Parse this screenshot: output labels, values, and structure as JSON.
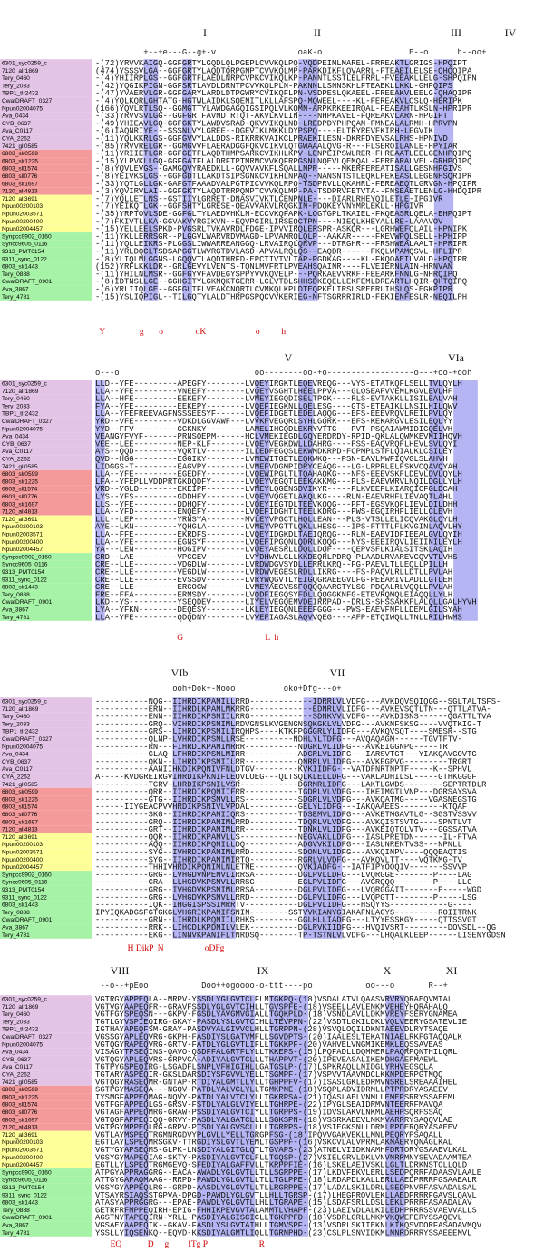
{
  "names": [
    "6301_syc0259_c",
    "7120_alr1869",
    "Tery_0460",
    "Tery_2033",
    "TBP1_tlr2432",
    "CwatDRAFT_0327",
    "Npun02004075",
    "Ava_0434",
    "CYB_0637",
    "Ava_C0117",
    "CYA_2262",
    "7421_gll0585",
    "6803_slr0599",
    "6803_slr1225",
    "6803_sll1574",
    "6803_sll0776",
    "6803_slr1697",
    "7120_all4813",
    "7120_all3691",
    "Npun00200103",
    "Npun02003571",
    "Npun00200400",
    "Npun02004457",
    "Synpcc9902_0160",
    "Syncc9605_0116",
    "9313_PMT0154",
    "9311_sync_0122",
    "6803_slr1443",
    "Tery_0888",
    "CwatDRAFT_0901",
    "Ava_3867",
    "Tery_4781"
  ],
  "blocks": [
    {
      "motifs": [
        "I",
        "II",
        "III",
        "IV"
      ],
      "consensus": "          +--+e---G--g+-v                 oaK-o                  E--o      h--oo+",
      "sequences": [
        "-(72)YRVVKAIGQ-GGFGRTYLGQDLQLPGEPLCVVKQLPQ-VQDPEIMLMAREL-FRREAKTLGRIGS-HPQIPT",
        "(474)YSSSVLGA--GGFGRTYLAQDTQRPGNPTCVVKQLMP-PARKDIKFLQVARRL-FTEAEILELSE-QHQQIPA",
        "-(4)YHIIRPLGS--GGFGRTFLAEDLNRPCVPKCVIKQLKP-PANNTLSSTLELFRRL-FVEEAKLLELG-SHPQIPN",
        "-(42)YQGIKPIGN-GGFSRTLAVDLDRNTPCVVKQLPLN-PAKNNLLSNNSKHLFTEAEKLLKKL-GHPQIPS",
        "-(47)YVAERVLGR-GGFGARYLARDLDTPGWRYCVIKQFLPN-VSDPESLQKAEEL-FREEAKVLEELG-QHAQIPR",
        "-(4)YQLKQRLGHTATG-HGTWLAIDKLSQENITLKLLAFSPQ-MQWEEL----KL-FEREAKVLOSLQ-HERIPK",
        "(166)YQVLRTLSQ--GGMGTTYLAWDGAGQIGSIPQLVLKQMN-ARPKRKEEIRQAL-FEAEAHTLKSLN-HPRIPR",
        "-(33)YRVVSVLGG--GGFGRTFAVNDTRTQT-AKVLKVLIN----NHPKAVEL-FQREAKVLARN-HPGIPT",
        "-(49)YHIEAVLGQ-GGFGKTYLAWDVSRAD-QKVVIKQLND-LREDPDYPHPQAN-FMNEALALRMH-HPRVPN",
        "-(6)IAQNRIYE---SSSNLVYLGREE--DGEVIKLMKKLDYPSPQ----ELTRYREVFKIRH-LEGVIK",
        "-(11)YQLKKRLGS-GGFGVVYLALDDS-RIKRRKVAIKCLPRAEKILESN-DKRFDYEVSALRHS-HPNIVD",
        "-(85)YRVVRELGR--GGMGVVFLAERADGGFQKVCIKVLQTGWAAALQVG-R---FLSEROILANLE-HPYIAR",
        "-(11)YRIIETLGR-GGFGETFLAQDTHMPSARKCVIKHLKPV-LENPEIPSWLRER-FHREAATLEELGENHPQIPQ",
        "-(15)YLPVKLLGQ-GGFGATFLALDRFTPTMRMCVVKQFRPGSNLNQEVLQEMQAL-FEREARALVEL-GRHPQIPQ",
        "-(8)YQVLEVGS--GAMGQVYRAEDKLL-GQVVAVKFLSQALLNPR-----MKERFEREATISALLGESNHPGIVS",
        "-(8)YEIVKSLGS--GGFGDTLLAKDTSIPSGNKCVIKHLNPAQ--NANSNTSTLEQKLFEKEASLLEGENHSQRIPR",
        "-(33)YQTLGLLGK-GAFGTFAAADVALPGTPICVVKQLRPQ-TSDPRVLLQKAHRL-FEREAEQTLGRVGN-HPQIPR",
        "-(3)YQVIRVLAI--GGFGKTYLAQDTRRPQMPTCVVKQLMP-PA-TSDPRVFETVTA--FNSEAETLENLG-HHDQIPR",
        "-(7)YQLLETLNS--GSTIIYLGRRET-DNASVIVKTLCENPNLE----DIARLRHEYQILETLE-IPGIVR",
        "-(7)YEIKQTLGK--GGFSHTYLGRESE-QEAVVAKVLRQGKIN-PDQKEYVNYMRLEKLL-HPGIVR",
        "-(35)YRPTOVLSDE-GGFGLTYLAEDVHKLN-ECCVKQFAPK-LOGTGPLTKAIEL-FKQEASRLQELA-EHPQIPT",
        "-(7)FKIVTLLKA-GGVAKVYRGIKVN--EQVPGIRLIRSEQCTPN----NIEQLKHEYALLRE-LAAAVOV",
        "-(15)YELLEELSPKD-PVGSRLTVKAVRDLFDGE-IPVVIRQLERSPR-ASKQR---LGRHWEFQLAIL-HPNIPK",
        "-(11)YKLLERRSGR--PLGGVLWARVRDVMAGD-LPVAMRQLQLP--AAKAR-----FKEVWPQLSELL-HPHIPP",
        "-(11)YQLLEIKRS-PLGGSLIWWARREANGGQ-LRVAIRQLQRVP---DTRGHR---FRSHWEALAALT-HPRIPR",
        "-(11)YRLDQCLTSDSAPGGTLWVRGTDVLASD-APVALRQLQS--EAQDR------FKQLWPAMQSVL-HPLIPR",
        "-(8)YLIQLMLGGNS-LGQQVTLAQDTHRFD-EPCTIVTVLTAP-PGDKAG----KL-FKQOAEILVALD-HPQIPR",
        "(152)YRFLKKLDR--GRLGEVYLVENTS-TQNLMVFRTLPVEAHSQAINR----FLVEIERNLAIN-HRNVAN",
        "-(11)YHILNLMSR--GGFGYVFAVDEGYSPPYVVKQVELP---PQRKAEVVRKF-FEEARKFNNLG-NHRQIPQ",
        "-(8)IDTNSLLGE--GGHGITYLGKNQKTGERR-LCLVTDLSHHSDKEQELLEKFEMLDREARTLHQIR-QHTQIPQ",
        "-(6)YRLIIQLGE--GGFGLTFLVEAKCNQRTLCVMKQLKPLDTEQPKELIRSLSREERLIHSLQS-EGKPIPR",
        "-(15)YSLIQPIGL--TILGQTYLALDTHRPGSPQCVVKERIEG-NFTSGRRRIRLD-FEKIENFESLR-NEQILPH"
      ],
      "key": "  Y                g       o               oK                       o          h"
    },
    {
      "motifs": [
        "V",
        "VIa"
      ],
      "consensus": "o---o                            oo--------oo-+o------------------o---+oo-+ooh",
      "sequences": [
        "LLD--YFE---------APEGFY--------LVQEYIRGKTLEQEVREQG---VYS-ETATKQFLSELLTVLQYLH",
        "LLA--YFE---------VNEEFY--------LVQEYVSGHTLHEELPPVA---GLOSEAFVVEMLKGVLEVLHF",
        "LLA--HFE---------EEKEFY--------LVMEYIEGQDISELTPGK----RLS-EVTAKKLLISILEALVAH",
        "FYA--YFE---------EEKEPY--------LVQEFIEGKNLLQELESG----GTS-ETEAIKLLNSILHILQWV",
        "LLA--YFEFREEVAGFNSSSEESYF------LVQEFIDGETLEDELAQQG---EFS-EEEVRQVLREILPVLQY",
        "YRD--VFE---------VDKDLGGVAWF---LVVKFVEGQRLSYHLGQRK---EFS-KEKARGVLESILEQLYY",
        "YYD--FFV---------GGKNKY--------LAMELIHGQDLEKRYVTTG---PVT-PSQAIAWMIDICQELVH",
        "VEANGYFVYF-------PRNSOEPM------HCLVMEKIEGDLGQYERDRDY-RPID-QKLALQWMKEVMIIHQVH",
        "VEE--LEE---------NEP-KLF-------LVQEYVEGKDWLLDAHRG----PSS-EAQVRQFLHEVLSVLQYI",
        "AYS--QQD---------VQRTLV--------ILLEDFEGQSLEKWMDKRPD-FCPMPLSTFLQIALKLCSILEY",
        "QVD--HGG---------EGGIKY--------LVMEWITGETLEQKWKQ---PSN-EAVLMWFIQVGLSLAHVH",
        "LIDGGS-T---------EAGVPY--------LVMEFVDGMPIDRYCEAQG---LG-LRPRLELFSKVCQAVQYAH",
        "LLA--YFE---------EGEDFY--------LVQEWIPGLTLTQAHAQKG---NFS-EEEVSKFLDEVLDVLQYLH",
        "LFA--YFEPLLVDDPRTGKDQDFY-------LVQEYVEGQTLEEKAKKMG---PLS-EAEVWRVLNQILDGLLYLH",
        "VRD--YGLD--------EKEIPF--------LVMEYLQGENSDVIKYR-----PLKVEEFLKIARQICFGLDCAH",
        "LYS--YFS---------GDDHFY--------LVQEYVQGETLAKQLKG----RLN-EAEVRHFLIEVAQTLAHL",
        "LLS--YFE---------DDHQFY--------LVQEYIEGTDLTEEVKQQG---PFT-EGSVKQFLIEVLDILDHH",
        "LLA--YFD---------ENQEFY--------LVQEFIDGHTLTEELKDRG---PWS-EGQIRHFLIELLCLEVH",
        "LLL--LEP---------YRNSYA--------MVLEYVPGCTLHQLLEAN---PLS-VTSLLELICQVAKGLQYLH",
        "AYE--LKN---------YQHGLA--------LVMEYVPGTTLQKLLHESG---IPS-FTTTLFLKVGINLAQVLHY",
        "LLA--FFE---------EKRDFS--------LVQEYIDGKDLTAEIQRQG---RLN-EAEVIDFIEEALGVLQYIH",
        "LLA--YFE---------EGNSYF--------LVQEFIPGQNLQDRLKQQG---NYS-EEEIRQVLIEIINILEYLH",
        "YA---LEN---------HOGIPV--------LVQEYAESRLLDQLLDQF----QEPVSFLKIALSITSKLAQIH",
        "CRD--LAE---------VPGGEV--------LVYDHWVLGLLKKDEQRLPDRQ-PLAADLRVAREVCQVVTLVHS",
        "CRE--LLE---------VDGDLW--------LVRDWDGVSYDLLERRLKRQ--FG-PAEVLTLLEQLLPILLH",
        "CRE--LLE---------VEGDLW--------LVRDWVEGESLRDLLIKRG----FS-PAQVLRLLDTLLPVLAH",
        "CRE--LLE---------EVSSDV--------LVRYWQGVTLYEIGQGRAEEGVLFG-PEEARIVLADLLGTLEH",
        "CRE--LLE---------ERGOGW--------LVMEYAEGVSSFQQQQAARGTYLSG-PDQALRLVQQLLPVLAH",
        "FRE--FFA---------ERMSDY--------LVQDFIEGQSYFDLLQQGGKNFG-ETEVRQMQLEIAQQLLYLH",
        "LKD--YS----------YSEQDEV-------LIYELVEGQEMVDEIRRPAD--DRLS-SHSSAKKFLALQLLGALHYVH",
        "LYA--YFKN--------DEQESY--------LKLEYIEGQNLEEEFGGG---PWS-EAEVFNFLLDEMLGILSYAH",
        "LLA--YFE---------QDQDNY--------LVVEFIAGASLAQVVQEG----AFP-ETQIWQLLTNLLRILHWMS"
      ],
      "key": "                                      G                                      L  h"
    },
    {
      "motifs": [
        "VIb",
        "VII"
      ],
      "consensus": "                ooh+Dok+-Nooo          oko+Dfg---o+",
      "sequences": [
        "-----------NQG--IIHRDIKPANILLRRD-------------IDRRLVLVDFG---AVKDQVSQIQGG--SGLTALTSFS-",
        "-----------ERN--IIHRDLKPANLMKRRG-------------EDNRLVLIDFG---AVKEVSQTLTN---QTTLATVA-",
        "-----------ENN--IIHRDIKPSNIILRRG-------------SDNKVVLVDFG---AVKDISNS------QGATTLTVA",
        "-----------GRQ--VIHRDIKPSNIMLRDVGNSLKVGENGNSQKGKLVLVDFG---AVKNFSKSG----VVQTKIG-T",
        "-----------GRS--LIHRDIKPSNILIRQHPS----KTKFPGGGRLYLIDFG---AVKQVSQT----SMESR--STG",
        "-----------QLNP-LVHRDIKPSNLLRSE----------NDHLYLTDFG---AVQAQAGM------TGVTFTV-",
        "-----------RN---FIHRDIKPANIMRRR-----------NDGRLVLIDFG---AVKEIGGNPG-----TR",
        "-----------GLAQ-LFHRDIKPSNLMIRR-----------ADGRLVLIDFG---IARSVTGT---YIAKQAVGOVTG",
        "-----------QKN--LIHRDIKPSNIILRR-----------QNRRLVLIDFG---AVKEGPVG---------TRGRT",
        "-----------AANIIHKDIKPQNIVFNLDTGV---------KVKIIDFG---VATDFNRTNPTF-----K--SPHVL",
        "A-----KVDGREIRGVIHRDIKPKNIFLEQVLOEG---QLTSQLKLELLDFG---VAKLADHILSL-----GTHKGGGF",
        "-----------TCRV-LHRDIKPSNILVSR------------DGRMRLIDFG---LAKTLGWDS--------SEPTRTDLR",
        "-----------QRR--IIHRDIKPQNIIFRR-----------TGDRLVLVDFG---IKEIMGTLVNP---DGRSAYSVA",
        "-----------GTG--IIHRDIKPSNVLLRS-----------SDGRLVLVDFG---AVKQATMG-----VGASNEGSTG",
        "------IIYGEACPVVHRDIKPSNIVLVPDAL----------GELYLIDFG---IAKQAAEES---------KTQAF",
        "-----------SKG--IIHRDIKPANIIQRS-----------TDSEMVLIDFG---AVKETMGAVTLG--SGSTVSSVV",
        "-----------GRQ--IIHRDIKPANIMLRRD----------TDQRLVLVDFG---AVKQISTSVTG----SPNTLVT",
        "-----------GRT--IIHRDIKPANIMLRR-----------TDNKLVLIDFG---AVKEIQTOLVTV---GGSSATVA",
        "-----------QQR--IIHRDIKPANVLLS------------NEGVAKLLDFG---IASLPRETDN------IL-FTVA",
        "-----------AQQ--IIHRDIKPQNILLDQ-----------ADGVVKILDFG---IASLNRENTVSS---NPNLL",
        "-----------SYG--IVHRDIKPANIMLRRD----------SDONLVLIDFG---AVKQINPV----QQQEAQTIS",
        "-----------SYG--IIHRDIKPANIMIRTQ----------RGRLVLVDFG---AVKQVLTT----VQTKMG-TV",
        "-----------THHIVHRDIKPQNIMLNLETNE---------QVKIADFG---IATFIPYOOQIV-------SSVVP",
        "-----------GRG--LVHGDVNPENVLIRRSA---------DGLPVLLDFG---LVQRGGE--------P----LAG",
        "-----------GRA--LLHGDVKPSNVLLRRSG---------EGLPVLIDFG---AVGRQQQ--------P----LLG",
        "-----------GRG--IVHGDVKPSNIMLRRSA---------DGLPVLIDFG---LVQRGGAIT-------P-----WGD",
        "-----------GRG--LVHGDVKPSNVLLRRD----------DGLPVLIDFG---LVQPGTT--------P-----LSG",
        "-----------IQK--IHGGISPSSIMRRTV-----------DGLPVLIDFG---HSQYYS------------G----",
        "IPYIQKADGSFGTGKGLVHGRIKPANIFSNIN--------SSTVVKIANYGIAKAFNLAGYS---------ROIITRNK",
        "-----------GRN--LIHRDLKPQNIILRHKS---------GGLHLLIADFG---LTYYESSKGY-----QTTSSVGT",
        "-----------RRK--LIHCDLKPDNILVLEK----------DGLRVKIIDFG---HVQIVSRT---------DOVSDL--QG",
        "-----------EKG--LINNVKPANIFLTNRDSQ--------TP-TSTNLVLVDFG---LHQALKLEEP------LISENYGDSN"
      ],
      "key": "               H DikP  N                   oDFg"
    },
    {
      "motifs": [
        "VIII",
        "IX",
        "X",
        "XI"
      ],
      "consensus": " --o--+pEoo           Doo++ogoooo-o-ttt----po           oo---o       R--+",
      "sequences": [
        "VGTRGYAPPEQLA--MRPV-YSSDLYGLGVTCLFLMTGKPQ-(18)VSDALATVLQAASVRVRYQRAEQVMTAL",
        "VGTVGYAAPEQFR--GRAVFSSDLYGLGVTCIHLLTGVSPFE-(18)VSEELLAVLENKMVEHEYHQRAHALQ",
        "VGTFGYSPEQSN---GKPV-FGSDLYAVGMVGIALLTGQKPLD-(18)VSNDLAVLLDKMVREYFSERYGNAMEA",
        "TGTLGYVSPIEQIRG-GKAY-PASDLYSLGVTCIHLLTEVPPN-(22)VSDTLGKILDKLVQLVEERYGSATEVLIE",
        "IGTHAYAPEQFSM-GRAY-PASDVYALGIVVCLHLLTGRPPN-(28)VSVQLOQILDKNTAEEVDLRYTSAQE",
        "VGSSGYAPLEQVRG-GKPH-FASDIYSLGATVMFLLSGVDPTS-(20)IAALESLTEKATNIAELRKFGTAQQALK",
        "VGTQGYRAPEQVRG-GRTV-FATDLYGLGVTLIFLLTGKKPF-(20)VAHVELVNGMIKEMKLEQSSAVEAS",
        "VISAGYTPSEQINS-QAVO-QSDFFALGRTFLYLLTKKEPS-(15)LPQFADLLDQMMERLPAQRPQNTHILQRL",
        "VGTQGYAPLEQVRS-GRPVCA-ADIYALGVTCLLLTHAPPVT-(20)IPEVEASALIKEMDHGAEPMAEWL",
        "TGTPYGSPEQIRG-LSGADFLSNPLVFHIGIHLLGATGSLP-(17)LSPKRAQLLNIDGLYRHVEGSQLA",
        "TGTARYASPEQIR-GKSLDARSDIYSFGVVLYELLTSGMPF-(17)VSPVVTAAVMDCLKKNPDERPGTMQQ",
        "VGTQGYRASEQMR-GNTAP-RTDIYALGMTLLYLLTGHPPFV-(17)ISASLGKLEDRMVNSRELSREAAAIHEL",
        "SGTPGYMASEQA---NGQV-PATDLYALVCLYLLTGMKPNE-(18)VSQPLADVIDRMLLPTPRDRYASAEEV",
        "IYSMGFAPPEQMAG-NQVY-PATDLYALVTCLYLLTGKRPSA-(21)IQASLAELVNMLLEMEPSRRYSSAEEML",
        "VGTFGFAPPEQLGS-GRSV-FSTDLYALGLVIYELLTGHRPE-(22)IPYGLSEAIDRMVNTEERRFMAVQA",
        "VGTAGFAPPEQMRG-GRAW-PSSDIYALGVTCIYLLTGRPPS-(19)IDVSLAKVLNKMLAEHPSQRFSSAQ",
        "VGTQGFAPPEQIQQ-GRVY-PASDLYALGATCLLLLSGKSPN-(18)VSSRKAEEVLNKMVARRRYSAQQVLAE",
        "VGTPGYMPPEQLRG-GRPV-PTSDLYALGVSCLLLLTGRRPS-(18)VSIEGKSNLLDRMLRPDERQRYASAEEV",
        "VGTLAYMSPEQTRGMNRGDVYPLGVLLYELLTGRGPFSG-(18)IPQVVGAKVEKLLMNLPEQRYPSAQALL",
        "EGTLAYLSPEQMRSGKV-TTRGDIYSLGVTLYEMLTGSPPF-(16)VSKCVLALVPRMLAKNAERYQNAGLKAL",
        "VGTYGYAPSEQMS-GLPK-LNSDIYALGITGLQTLTGVAPS-(23)ATNELVIIDKNAMHFDRTORYGSAAEVLKAL",
        "VGSYGYMAPEQIAG-SKTY-PASDIYALGVTCLFLLTGQSP-(27)VSIELGRVLDKLVNVNRRMNYSEVADAAMTEA",
        "EGTLLYLSPEQTRGMGEVQ-SFEDIYALGAFFVLLTKRPPFIE-(16)LSKELAEIVSKLLGLTLDRKNSTOLLQLD",
        "ATPGYAPPRAGGRG--EACA-AWADLYGLGVTLLTLLSGRPPE-(17)LKDVFEKVLERLLSEDPQRRFADAASVLAALE",
        "ATTGYGAPAQMAAG--RRPD-PAWDLYGLGVTLLTLLTGLPPE-(18)LRDAPDLKALLERLLAEDPRRRFGSAAEALR",
        "VGSYGYAPPEQLRG--GRPD-AASDLYGLGVTLLTLLRGRPPE-(17)LADALSKILDRLLSEDPNVRFASVADALSAL",
        "VTSAYRSIAQSSTGPVA-DPGD-PAWDLYGLGVTLLHLLTGRSP-(17)LHEGFROVLEKLLAEDPRRRFGAVSLQAVL",
        "ATASYAPPRGGRG---EPAE-PAWDLYGLGVTLLHLLTGRAPE-(15)LSDAFSRLLDSLLEKLPRRRFASAADALAV",
        "GETRFRFMPPEQIRH-EPIG-FHHIKPEVGVTALAMMTLVHAPF-(23)LAEIVDLALKILEDHPRRRSSVAEVVALLS",
        "AGSTNYTAPEQIRN-YRLL-PASDIYALGISCICLLTGKPPFD-(18)VSDRLGRLLMKMVKQWEPERYSSAQEVL",
        "VGSAEYAAPEQIK--GKAV-FASDLYSLGVTAIHLLTGMVSPF-(13)VSDRLSKIIEKNLKIKQSVDORFASADAVMQV",
        "YSSLLYIQSENKQ--EQVD-KKSDIYALGMTLIQLLTGRNPHD-(23)CSLPLSNVIDKMLNNRDRRRYSSAEEEMVL"
      ],
      "key": "       EQ            D     g         ITg P                        R"
    }
  ]
}
